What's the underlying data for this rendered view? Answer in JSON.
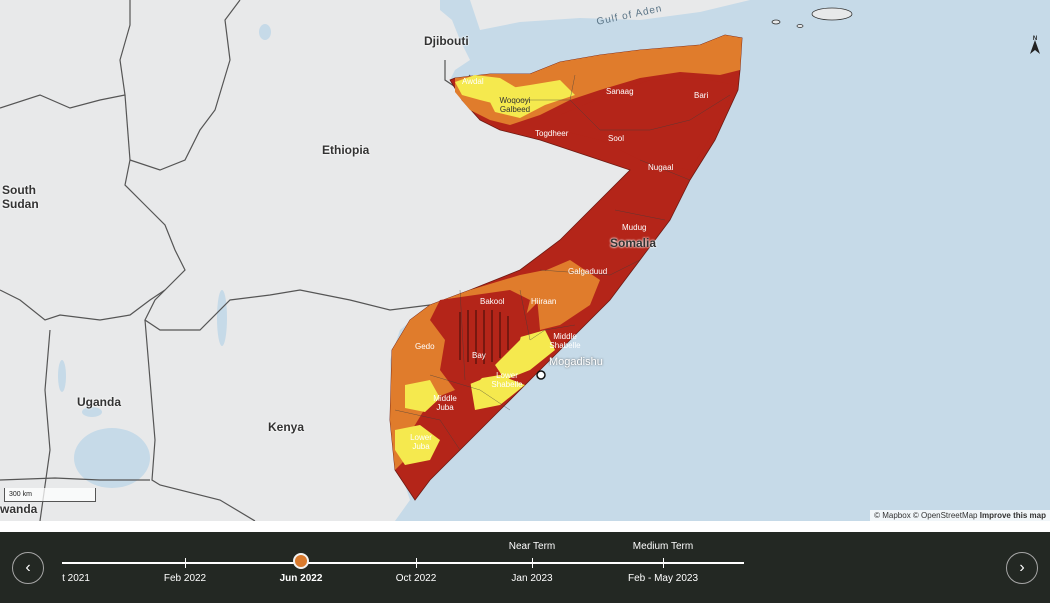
{
  "map": {
    "countries": [
      "Djibouti",
      "Ethiopia",
      "South Sudan",
      "Somalia",
      "Uganda",
      "Kenya",
      "wanda"
    ],
    "sea": "Gulf of Aden",
    "capital": "Mogadishu",
    "regions": {
      "awdal": "Awdal",
      "woqooyi": "Woqooyi Galbeed",
      "togdheer": "Togdheer",
      "sanaag": "Sanaag",
      "sool": "Sool",
      "bari": "Bari",
      "nugaal": "Nugaal",
      "mudug": "Mudug",
      "galgaduud": "Galgaduud",
      "bakool": "Bakool",
      "hiiraan": "Hiiraan",
      "middle_shabelle": "Middle Shabelle",
      "gedo": "Gedo",
      "bay": "Bay",
      "lower_shabelle": "Lower Shabelle",
      "middle_juba": "Middle Juba",
      "lower_juba": "Lower Juba"
    },
    "legend_colors": {
      "stressed": "#f5e94e",
      "crisis": "#e07c2c",
      "emergency": "#b42519",
      "water": "#c6dae8",
      "land": "#e8e9ea"
    },
    "scale": "300 km",
    "north": "N",
    "attribution": {
      "text": "© Mapbox © OpenStreetMap",
      "link": "Improve this map"
    }
  },
  "timeline": {
    "prev_icon": "chevron-left-icon",
    "next_icon": "chevron-right-icon",
    "labels": [
      "t 2021",
      "Feb 2022",
      "Jun 2022",
      "Oct 2022",
      "Jan 2023",
      "Feb - May 2023"
    ],
    "active": "Jun 2022",
    "near_term": "Near Term",
    "medium_term": "Medium Term"
  }
}
